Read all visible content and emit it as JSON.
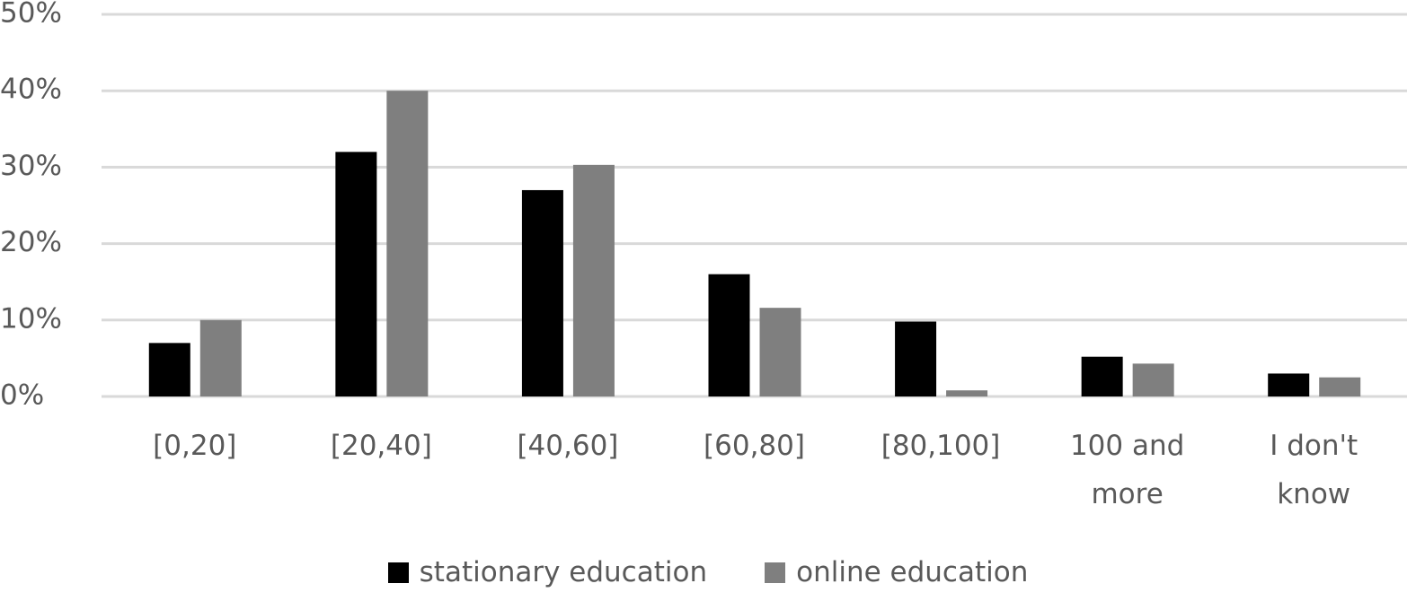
{
  "chart_data": {
    "type": "bar",
    "categories": [
      "[0,20]",
      "[20,40]",
      "[40,60]",
      "[60,80]",
      "[80,100]",
      "100 and more",
      "I don't know"
    ],
    "series": [
      {
        "name": "stationary education",
        "color": "#000000",
        "values": [
          7,
          32,
          27,
          16,
          9.8,
          5.2,
          3
        ]
      },
      {
        "name": "online education",
        "color": "#7f7f7f",
        "values": [
          10,
          40,
          30.3,
          11.6,
          0.8,
          4.3,
          2.5
        ]
      }
    ],
    "ylim": [
      0,
      50
    ],
    "yticks": [
      {
        "value": 0,
        "label": "0%"
      },
      {
        "value": 10,
        "label": "10%"
      },
      {
        "value": 20,
        "label": "20%"
      },
      {
        "value": 30,
        "label": "30%"
      },
      {
        "value": 40,
        "label": "40%"
      },
      {
        "value": 50,
        "label": "50%"
      }
    ],
    "grid": true,
    "legend": "bottom"
  }
}
